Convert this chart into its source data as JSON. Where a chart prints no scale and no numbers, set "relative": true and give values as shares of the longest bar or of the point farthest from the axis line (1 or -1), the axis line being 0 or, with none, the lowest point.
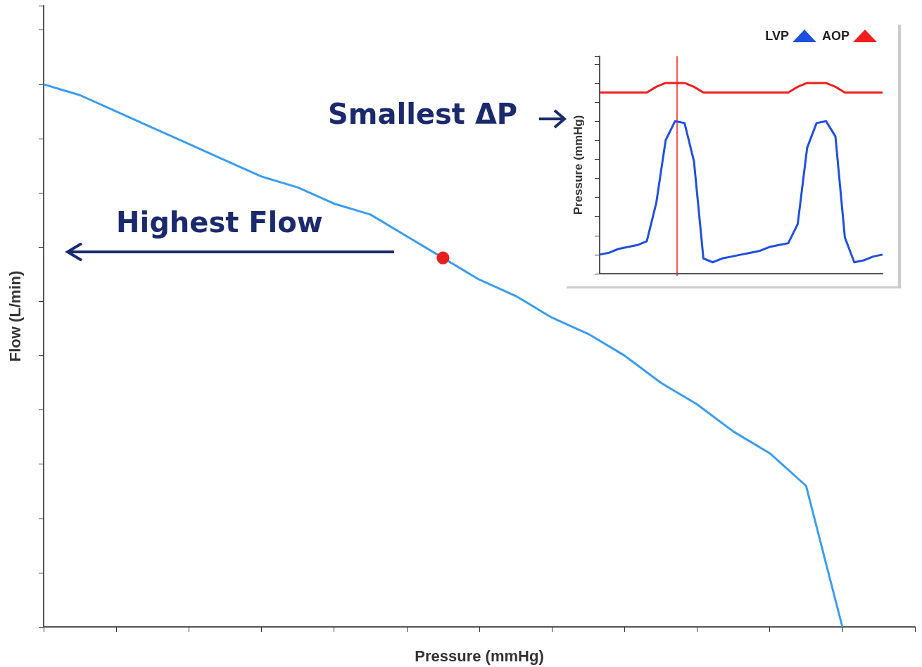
{
  "chart_data": [
    {
      "type": "line",
      "relative": true,
      "xlabel": "Pressure (mmHg)",
      "ylabel": "Flow (L/min)",
      "marker": "none",
      "categories": [
        null,
        null,
        null,
        null,
        null,
        null,
        null,
        null,
        null,
        null,
        null,
        null,
        null,
        null,
        null,
        null,
        null,
        null,
        null,
        null,
        null,
        null,
        null,
        null,
        null
      ],
      "series": [
        {
          "color": "#3a9cf0",
          "values": [
            1,
            0.98,
            0.95,
            0.92,
            0.89,
            0.86,
            0.83,
            0.81,
            0.78,
            0.76,
            0.72,
            0.68,
            0.64,
            0.61,
            0.57,
            0.54,
            0.5,
            0.45,
            0.41,
            0.36,
            0.32,
            0.26,
            0,
            null,
            null
          ],
          "colors": [
            null,
            null,
            null,
            null,
            null,
            null,
            null,
            null,
            null,
            null,
            null,
            "#e8201c",
            null,
            null,
            null,
            null,
            null,
            null,
            null,
            null,
            null,
            null,
            null,
            null,
            null
          ]
        }
      ],
      "annotations": [
        "Highest Flow",
        "Smallest ΔP"
      ]
    },
    {
      "type": "line",
      "relative": true,
      "ylabel": "Pressure (mmHg)",
      "marker": "none",
      "legend": "top right",
      "categories": [
        null,
        null,
        null,
        null,
        null,
        null,
        null,
        null,
        null,
        null,
        null,
        null,
        null,
        null,
        null,
        null,
        null,
        null,
        null,
        null,
        null,
        null,
        null,
        null,
        null,
        null,
        null,
        null,
        null,
        null,
        null
      ],
      "series": [
        {
          "name": "LVP",
          "color": "#1f4fe0",
          "values": [
            0.1,
            0.11,
            0.13,
            0.14,
            0.15,
            0.17,
            0.37,
            0.7,
            0.8,
            0.79,
            0.59,
            0.08,
            0.06,
            0.08,
            0.09,
            0.1,
            0.11,
            0.12,
            0.14,
            0.15,
            0.16,
            0.26,
            0.66,
            0.79,
            0.8,
            0.72,
            0.19,
            0.06,
            0.07,
            0.09,
            0.1
          ]
        },
        {
          "name": "AOP",
          "color": "#f01e1e",
          "values": [
            0.95,
            0.95,
            0.95,
            0.95,
            0.95,
            0.95,
            0.98,
            1,
            1,
            1,
            0.98,
            0.95,
            0.95,
            0.95,
            0.95,
            0.95,
            0.95,
            0.95,
            0.95,
            0.95,
            0.95,
            0.98,
            1,
            1,
            1,
            0.98,
            0.95,
            0.95,
            0.95,
            0.95,
            0.95
          ]
        }
      ]
    }
  ]
}
